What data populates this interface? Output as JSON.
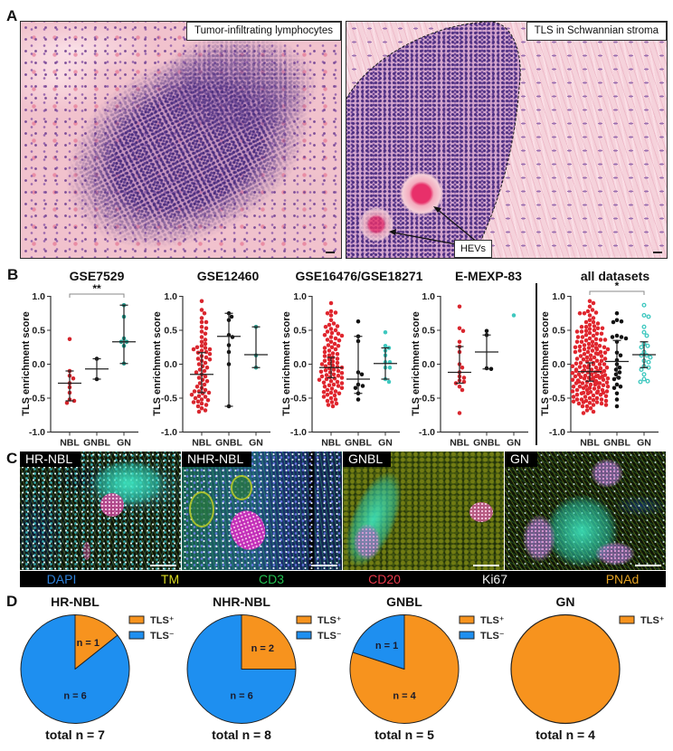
{
  "panel_labels": {
    "a": "A",
    "b": "B",
    "c": "C",
    "d": "D"
  },
  "panel_a": {
    "left_label": "Tumor-infiltrating lymphocytes",
    "right_label": "TLS in Schwannian stroma",
    "annotation": "HEVs"
  },
  "panel_c": {
    "images": [
      {
        "label": "HR-NBL"
      },
      {
        "label": "NHR-NBL"
      },
      {
        "label": "GNBL"
      },
      {
        "label": "GN"
      }
    ],
    "legend": [
      {
        "label": "DAPI",
        "color": "#2f80d8"
      },
      {
        "label": "TM",
        "color": "#d8d820"
      },
      {
        "label": "CD3",
        "color": "#22c050"
      },
      {
        "label": "CD20",
        "color": "#e8384a"
      },
      {
        "label": "Ki67",
        "color": "#f2f2f2"
      },
      {
        "label": "PNAd",
        "color": "#e3a122"
      }
    ]
  },
  "chart_data": [
    {
      "type": "scatter",
      "title": "GSE7529",
      "ylabel": "TLS enrichment score",
      "ylim": [
        -1.0,
        1.0
      ],
      "yticks": [
        1.0,
        0.5,
        0.0,
        -0.5,
        -1.0
      ],
      "ytick_labels": [
        "1.0",
        "0.5",
        "0.0",
        "-0.5",
        "-1.0"
      ],
      "categories": [
        "NBL",
        "GNBL",
        "GN"
      ],
      "series": [
        {
          "name": "NBL",
          "color": "#d4232b",
          "hollow": false,
          "median": -0.28,
          "error": [
            -0.54,
            -0.1
          ],
          "values": [
            0.37,
            -0.1,
            -0.17,
            -0.21,
            -0.28,
            -0.34,
            -0.42,
            -0.52,
            -0.54,
            -0.57
          ]
        },
        {
          "name": "GNBL",
          "color": "#111111",
          "hollow": false,
          "median": -0.07,
          "error": [
            -0.22,
            0.08
          ],
          "values": [
            0.08,
            -0.22
          ]
        },
        {
          "name": "GN",
          "color": "#1f9a8b",
          "hollow": false,
          "median": 0.33,
          "error": [
            0.01,
            0.87
          ],
          "values": [
            0.87,
            0.7,
            0.38,
            0.33,
            0.33,
            0.27,
            0.01
          ]
        }
      ],
      "significance": {
        "from": 0,
        "to": 2,
        "label": "**"
      }
    },
    {
      "type": "scatter",
      "title": "GSE12460",
      "ylabel": "TLS enrichment score",
      "ylim": [
        -1.0,
        1.0
      ],
      "yticks": [
        1.0,
        0.5,
        0.0,
        -0.5,
        -1.0
      ],
      "ytick_labels": [
        "1.0",
        "0.5",
        "0.0",
        "-0.5",
        "-1.0"
      ],
      "categories": [
        "NBL",
        "GNBL",
        "GN"
      ],
      "series": [
        {
          "name": "NBL",
          "color": "#d9262e",
          "hollow": false,
          "median": -0.15,
          "error": [
            -0.42,
            0.17
          ],
          "values": [
            0.93,
            0.8,
            0.75,
            0.68,
            0.62,
            0.62,
            0.55,
            0.53,
            0.48,
            0.45,
            0.4,
            0.36,
            0.33,
            0.3,
            0.27,
            0.25,
            0.24,
            0.22,
            0.22,
            0.2,
            0.18,
            0.17,
            0.15,
            0.12,
            0.1,
            0.08,
            0.07,
            0.05,
            0.02,
            0.0,
            -0.03,
            -0.05,
            -0.08,
            -0.1,
            -0.12,
            -0.15,
            -0.18,
            -0.2,
            -0.23,
            -0.25,
            -0.28,
            -0.3,
            -0.33,
            -0.35,
            -0.38,
            -0.4,
            -0.4,
            -0.42,
            -0.43,
            -0.45,
            -0.47,
            -0.48,
            -0.5,
            -0.52,
            -0.53,
            -0.55,
            -0.56,
            -0.58,
            -0.6,
            -0.62,
            -0.65,
            -0.68,
            -0.7
          ]
        },
        {
          "name": "GNBL",
          "color": "#111111",
          "hollow": false,
          "median": 0.41,
          "error": [
            -0.62,
            0.75
          ],
          "values": [
            0.75,
            0.7,
            0.65,
            0.43,
            0.4,
            0.28,
            0.18,
            0.0,
            -0.62
          ]
        },
        {
          "name": "GN",
          "color": "#2a9a8c",
          "hollow": false,
          "median": 0.14,
          "error": [
            -0.05,
            0.55
          ],
          "values": [
            0.55,
            0.13,
            -0.05
          ]
        }
      ]
    },
    {
      "type": "scatter",
      "title": "GSE16476/GSE18271",
      "ylabel": "TLS enrichment score",
      "ylim": [
        -1.0,
        1.0
      ],
      "yticks": [
        1.0,
        0.5,
        0.0,
        -0.5,
        -1.0
      ],
      "ytick_labels": [
        "1.0",
        "0.5",
        "0.0",
        "-0.5",
        "-1.0"
      ],
      "categories": [
        "NBL",
        "GNBL",
        "GN"
      ],
      "series": [
        {
          "name": "NBL",
          "color": "#e0262e",
          "hollow": false,
          "median": -0.05,
          "error": [
            -0.2,
            0.1
          ],
          "values": [
            0.9,
            0.78,
            0.76,
            0.75,
            0.72,
            0.65,
            0.6,
            0.58,
            0.56,
            0.55,
            0.52,
            0.5,
            0.48,
            0.46,
            0.45,
            0.43,
            0.42,
            0.4,
            0.38,
            0.36,
            0.35,
            0.33,
            0.3,
            0.28,
            0.27,
            0.25,
            0.24,
            0.22,
            0.2,
            0.18,
            0.16,
            0.15,
            0.13,
            0.12,
            0.1,
            0.08,
            0.07,
            0.05,
            0.04,
            0.02,
            0.01,
            0.0,
            -0.02,
            -0.03,
            -0.04,
            -0.05,
            -0.06,
            -0.08,
            -0.09,
            -0.1,
            -0.11,
            -0.12,
            -0.13,
            -0.15,
            -0.16,
            -0.17,
            -0.18,
            -0.19,
            -0.2,
            -0.21,
            -0.22,
            -0.23,
            -0.25,
            -0.26,
            -0.27,
            -0.28,
            -0.3,
            -0.31,
            -0.32,
            -0.33,
            -0.35,
            -0.36,
            -0.38,
            -0.4,
            -0.41,
            -0.42,
            -0.43,
            -0.45,
            -0.46,
            -0.48,
            -0.5,
            -0.52,
            -0.54,
            -0.56,
            -0.58,
            -0.6,
            -0.62
          ]
        },
        {
          "name": "GNBL",
          "color": "#111111",
          "hollow": false,
          "median": -0.22,
          "error": [
            -0.43,
            0.41
          ],
          "values": [
            0.63,
            0.41,
            0.34,
            -0.12,
            -0.15,
            -0.3,
            -0.32,
            -0.35,
            -0.43,
            -0.52
          ]
        },
        {
          "name": "GN",
          "color": "#3ec8bf",
          "hollow": false,
          "median": 0.01,
          "error": [
            -0.22,
            0.24
          ],
          "values": [
            0.47,
            0.27,
            0.24,
            0.2,
            0.13,
            0.03,
            0.03,
            -0.05,
            -0.05,
            -0.22,
            -0.26
          ]
        }
      ]
    },
    {
      "type": "scatter",
      "title": "E-MEXP-83",
      "ylabel": "TLS enrichment score",
      "ylim": [
        -1.0,
        1.0
      ],
      "yticks": [
        1.0,
        0.5,
        0.0,
        -0.5,
        -1.0
      ],
      "ytick_labels": [
        "1.0",
        "0.5",
        "0.0",
        "-0.5",
        "-1.0"
      ],
      "categories": [
        "NBL",
        "GNBL",
        "GN"
      ],
      "series": [
        {
          "name": "NBL",
          "color": "#d9262e",
          "hollow": false,
          "median": -0.12,
          "error": [
            -0.28,
            0.26
          ],
          "values": [
            0.85,
            0.53,
            0.49,
            0.33,
            0.26,
            0.18,
            0.0,
            -0.05,
            -0.12,
            -0.18,
            -0.2,
            -0.24,
            -0.26,
            -0.28,
            -0.33,
            -0.38,
            -0.72
          ]
        },
        {
          "name": "GNBL",
          "color": "#111111",
          "hollow": false,
          "median": 0.18,
          "error": [
            -0.07,
            0.43
          ],
          "values": [
            0.49,
            0.43,
            -0.06,
            -0.07
          ]
        },
        {
          "name": "GN",
          "color": "#3ec8bf",
          "hollow": false,
          "median": null,
          "error": null,
          "values": [
            0.72
          ]
        }
      ]
    },
    {
      "type": "scatter",
      "title": "all datasets",
      "ylabel": "TLS enrichment score",
      "ylim": [
        -1.0,
        1.0
      ],
      "yticks": [
        1.0,
        0.5,
        0.0,
        -0.5,
        -1.0
      ],
      "ytick_labels": [
        "1.0",
        "0.5",
        "0.0",
        "-0.5",
        "-1.0"
      ],
      "categories": [
        "NBL",
        "GNBL",
        "GN"
      ],
      "series": [
        {
          "name": "NBL",
          "color": "#e0262e",
          "hollow": false,
          "median": -0.11,
          "error": [
            -0.25,
            0.02
          ],
          "values": [
            0.37,
            -0.1,
            -0.17,
            -0.21,
            -0.28,
            -0.34,
            -0.42,
            -0.52,
            -0.54,
            -0.57,
            0.93,
            0.8,
            0.75,
            0.68,
            0.62,
            0.62,
            0.55,
            0.53,
            0.48,
            0.45,
            0.4,
            0.36,
            0.33,
            0.3,
            0.27,
            0.25,
            0.24,
            0.22,
            0.22,
            0.2,
            0.18,
            0.17,
            0.15,
            0.12,
            0.1,
            0.08,
            0.07,
            0.05,
            0.02,
            0.0,
            -0.03,
            -0.05,
            -0.08,
            -0.1,
            -0.12,
            -0.15,
            -0.18,
            -0.2,
            -0.23,
            -0.25,
            -0.28,
            -0.3,
            -0.33,
            -0.35,
            -0.38,
            -0.4,
            -0.4,
            -0.42,
            -0.43,
            -0.45,
            -0.47,
            -0.48,
            -0.5,
            -0.52,
            -0.53,
            -0.55,
            -0.56,
            -0.58,
            -0.6,
            -0.62,
            -0.65,
            -0.68,
            -0.7,
            0.9,
            0.78,
            0.76,
            0.75,
            0.72,
            0.65,
            0.6,
            0.58,
            0.56,
            0.55,
            0.52,
            0.5,
            0.48,
            0.46,
            0.45,
            0.43,
            0.42,
            0.4,
            0.38,
            0.36,
            0.35,
            0.33,
            0.3,
            0.28,
            0.27,
            0.25,
            0.24,
            0.22,
            0.2,
            0.18,
            0.16,
            0.15,
            0.13,
            0.12,
            0.1,
            0.08,
            0.07,
            0.05,
            0.04,
            0.02,
            0.01,
            0.0,
            -0.02,
            -0.03,
            -0.04,
            -0.05,
            -0.06,
            -0.08,
            -0.09,
            -0.1,
            -0.11,
            -0.12,
            -0.13,
            -0.15,
            -0.16,
            -0.17,
            -0.18,
            -0.19,
            -0.2,
            -0.21,
            -0.22,
            -0.23,
            -0.25,
            -0.26,
            -0.27,
            -0.28,
            -0.3,
            -0.31,
            -0.32,
            -0.33,
            -0.35,
            -0.36,
            -0.38,
            -0.4,
            -0.41,
            -0.42,
            -0.43,
            -0.45,
            -0.46,
            -0.48,
            -0.5,
            -0.52,
            -0.54,
            -0.56,
            -0.58,
            -0.6,
            -0.62,
            0.85,
            0.53,
            0.49,
            0.33,
            0.26,
            0.18,
            0.0,
            -0.05,
            -0.12,
            -0.18,
            -0.2,
            -0.24,
            -0.26,
            -0.28,
            -0.33,
            -0.38,
            -0.72
          ]
        },
        {
          "name": "GNBL",
          "color": "#111111",
          "hollow": false,
          "median": 0.04,
          "error": [
            -0.2,
            0.35
          ],
          "values": [
            0.75,
            0.65,
            0.63,
            0.62,
            0.42,
            0.4,
            0.4,
            0.38,
            0.33,
            0.17,
            0.13,
            0.06,
            0.0,
            -0.05,
            -0.08,
            -0.12,
            -0.15,
            -0.2,
            -0.22,
            -0.3,
            -0.33,
            -0.35,
            -0.43,
            -0.52,
            -0.62
          ]
        },
        {
          "name": "GN",
          "color": "#3ec8bf",
          "hollow": true,
          "median": 0.14,
          "error": [
            -0.05,
            0.33
          ],
          "values": [
            0.87,
            0.72,
            0.7,
            0.55,
            0.47,
            0.42,
            0.3,
            0.27,
            0.25,
            0.18,
            0.13,
            0.13,
            0.1,
            0.05,
            0.03,
            -0.03,
            -0.05,
            -0.08,
            -0.15,
            -0.22,
            -0.25,
            -0.26
          ]
        }
      ],
      "significance": {
        "from": 0,
        "to": 2,
        "label": "*"
      }
    },
    {
      "type": "pie",
      "title": "HR-NBL",
      "categories": [
        "TLS⁺",
        "TLS⁻"
      ],
      "values": [
        1,
        6
      ],
      "colors": [
        "#f7931e",
        "#1e8ff0"
      ],
      "slice_labels": [
        "n = 1",
        "n = 6"
      ],
      "total_label": "total n = 7"
    },
    {
      "type": "pie",
      "title": "NHR-NBL",
      "categories": [
        "TLS⁺",
        "TLS⁻"
      ],
      "values": [
        2,
        6
      ],
      "colors": [
        "#f7931e",
        "#1e8ff0"
      ],
      "slice_labels": [
        "n = 2",
        "n = 6"
      ],
      "total_label": "total n = 8"
    },
    {
      "type": "pie",
      "title": "GNBL",
      "categories": [
        "TLS⁺",
        "TLS⁻"
      ],
      "values": [
        4,
        1
      ],
      "colors": [
        "#f7931e",
        "#1e8ff0"
      ],
      "slice_labels": [
        "n = 4",
        "n = 1"
      ],
      "total_label": "total n = 5"
    },
    {
      "type": "pie",
      "title": "GN",
      "categories": [
        "TLS⁺"
      ],
      "values": [
        4
      ],
      "colors": [
        "#f7931e"
      ],
      "slice_labels": [
        ""
      ],
      "total_label": "total n = 4"
    }
  ]
}
